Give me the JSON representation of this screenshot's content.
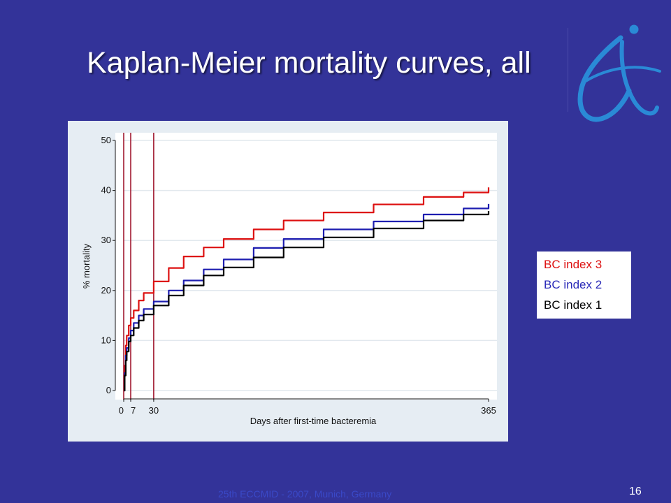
{
  "slide": {
    "title": "Kaplan-Meier mortality curves, all",
    "footer": "25th ECCMID - 2007, Munich, Germany",
    "page_number": "16",
    "logo_icon": "eccmid-logo-icon"
  },
  "legend": {
    "items": [
      {
        "label": "BC index 3",
        "color": "#dd1111"
      },
      {
        "label": "BC index 2",
        "color": "#1d1db0"
      },
      {
        "label": "BC index 1",
        "color": "#000000"
      }
    ]
  },
  "chart_data": {
    "type": "line",
    "title": "",
    "xlabel": "Days after first-time bacteremia",
    "ylabel": "% mortality",
    "xlim": [
      0,
      365
    ],
    "ylim": [
      0,
      50
    ],
    "y_ticks": [
      0,
      10,
      20,
      30,
      40,
      50
    ],
    "x_ticks": [
      {
        "value": 0,
        "label": "0"
      },
      {
        "value": 7,
        "label": "7"
      },
      {
        "value": 30,
        "label": "30"
      },
      {
        "value": 365,
        "label": "365"
      }
    ],
    "vertical_markers": [
      0,
      7,
      30
    ],
    "grid": "horizontal",
    "legend_position": "right",
    "series": [
      {
        "name": "BC index 3",
        "color": "#dd1111",
        "x": [
          0,
          1,
          2,
          3,
          5,
          7,
          10,
          15,
          20,
          30,
          45,
          60,
          80,
          100,
          130,
          160,
          200,
          250,
          300,
          340,
          365
        ],
        "y": [
          0,
          5,
          9,
          11,
          13,
          14.5,
          16,
          18,
          19.5,
          21.8,
          24.5,
          26.8,
          28.6,
          30.3,
          32.2,
          34,
          35.6,
          37.2,
          38.7,
          39.6,
          40.6
        ]
      },
      {
        "name": "BC index 2",
        "color": "#1d1db0",
        "x": [
          0,
          1,
          2,
          3,
          5,
          7,
          10,
          15,
          20,
          30,
          45,
          60,
          80,
          100,
          130,
          160,
          200,
          250,
          300,
          340,
          365
        ],
        "y": [
          0,
          3.5,
          7,
          8.5,
          10.5,
          12,
          13.5,
          15,
          16.3,
          17.8,
          20,
          22,
          24.2,
          26.2,
          28.5,
          30.3,
          32.2,
          33.8,
          35.2,
          36.4,
          37.3
        ]
      },
      {
        "name": "BC index 1",
        "color": "#000000",
        "x": [
          0,
          1,
          2,
          3,
          5,
          7,
          10,
          15,
          20,
          30,
          45,
          60,
          80,
          100,
          130,
          160,
          200,
          250,
          300,
          340,
          365
        ],
        "y": [
          0,
          3,
          6,
          7.8,
          9.8,
          11,
          12.5,
          14,
          15.2,
          17,
          19,
          21,
          23,
          24.6,
          26.6,
          28.6,
          30.6,
          32.4,
          34,
          35.2,
          35.9
        ]
      }
    ]
  }
}
